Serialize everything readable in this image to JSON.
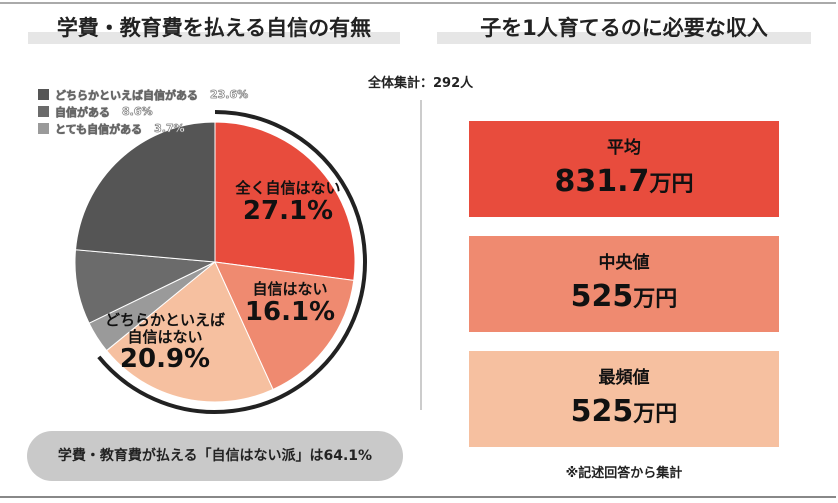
{
  "left_title": "学費・教育費を払える自信の有無",
  "right_title": "子を1人育てるのに必要な収入",
  "total": "全体集計：292人",
  "chart_data": {
    "type": "pie",
    "title": "学費・教育費を払える自信の有無",
    "slices": [
      {
        "label": "全く自信はない",
        "value": 27.1,
        "display": "27.1%",
        "color": "#e84c3d"
      },
      {
        "label": "自信はない",
        "value": 16.1,
        "display": "16.1%",
        "color": "#ef8a70"
      },
      {
        "label": "どちらかといえば自信はない",
        "label_lines": [
          "どちらかといえば",
          "自信はない"
        ],
        "display": "20.9%",
        "value": 20.9,
        "color": "#f6c0a0"
      },
      {
        "label": "とても自信がある",
        "value": 3.7,
        "display": "3.7%",
        "color": "#9a9a9a"
      },
      {
        "label": "自信がある",
        "value": 8.6,
        "display": "8.6%",
        "color": "#6b6b6b"
      },
      {
        "label": "どちらかといえば自信がある",
        "value": 23.6,
        "display": "23.6%",
        "color": "#555555"
      }
    ],
    "highlight_arc_percent": 64.1
  },
  "legend": [
    {
      "label": "どちらかといえば自信がある",
      "pct": "23.6%",
      "color": "#555555"
    },
    {
      "label": "自信がある",
      "pct": "8.6%",
      "color": "#6b6b6b"
    },
    {
      "label": "とても自信がある",
      "pct": "3.7%",
      "color": "#9a9a9a"
    }
  ],
  "summary": "学費・教育費が払える「自信はない派」は64.1%",
  "income": [
    {
      "label": "平均",
      "value": "831.7",
      "unit": "万円",
      "color": "#e84c3d"
    },
    {
      "label": "中央値",
      "value": "525",
      "unit": "万円",
      "color": "#ef8a70"
    },
    {
      "label": "最頻値",
      "value": "525",
      "unit": "万円",
      "color": "#f6c0a0"
    }
  ],
  "note": "※記述回答から集計"
}
